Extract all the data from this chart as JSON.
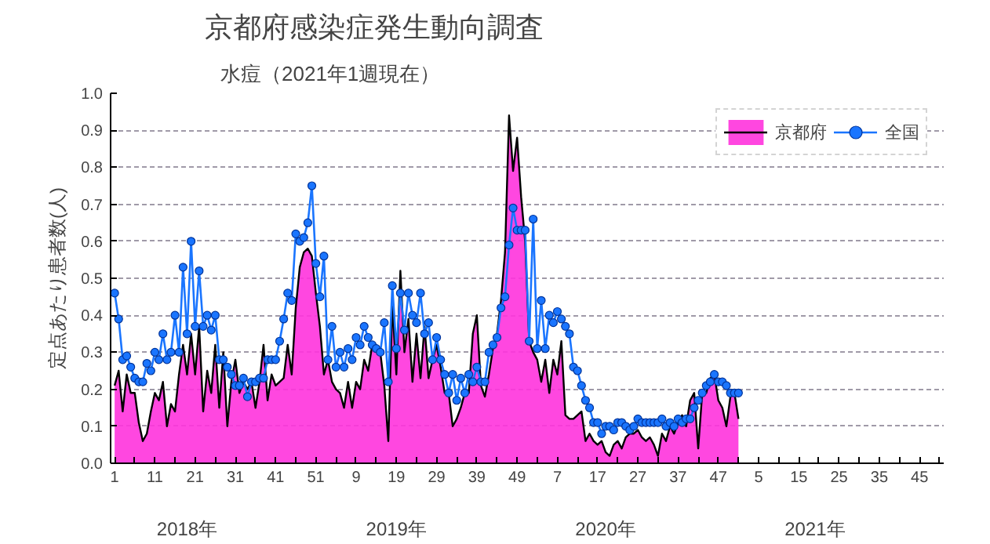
{
  "chart_data": {
    "type": "area",
    "title": "京都府感染症発生動向調査",
    "subtitle": "水痘（2021年1週現在）",
    "ylabel": "定点あたり患者数(人)",
    "annotations": [
      "2018年",
      "2019年",
      "2020年",
      "2021年"
    ],
    "categories": [
      "1",
      null,
      null,
      null,
      null,
      null,
      null,
      null,
      null,
      null,
      "11",
      null,
      null,
      null,
      null,
      null,
      null,
      null,
      null,
      null,
      "21",
      null,
      null,
      null,
      null,
      null,
      null,
      null,
      null,
      null,
      "31",
      null,
      null,
      null,
      null,
      null,
      null,
      null,
      null,
      null,
      "41",
      null,
      null,
      null,
      null,
      null,
      null,
      null,
      null,
      null,
      "51",
      null,
      null,
      null,
      null,
      null,
      null,
      null,
      null,
      null,
      "9",
      null,
      null,
      null,
      null,
      null,
      null,
      null,
      null,
      null,
      "19",
      null,
      null,
      null,
      null,
      null,
      null,
      null,
      null,
      null,
      "29",
      null,
      null,
      null,
      null,
      null,
      null,
      null,
      null,
      null,
      "39",
      null,
      null,
      null,
      null,
      null,
      null,
      null,
      null,
      null,
      "49",
      null,
      null,
      null,
      null,
      null,
      null,
      null,
      null,
      null,
      "7",
      null,
      null,
      null,
      null,
      null,
      null,
      null,
      null,
      null,
      "17",
      null,
      null,
      null,
      null,
      null,
      null,
      null,
      null,
      null,
      "27",
      null,
      null,
      null,
      null,
      null,
      null,
      null,
      null,
      null,
      "37",
      null,
      null,
      null,
      null,
      null,
      null,
      null,
      null,
      null,
      "47",
      null,
      null,
      null,
      null,
      null,
      null,
      null,
      null,
      null,
      "5",
      null,
      null,
      null,
      null,
      null,
      null,
      null,
      null,
      null,
      "15",
      null,
      null,
      null,
      null,
      null,
      null,
      null,
      null,
      null,
      "25",
      null,
      null,
      null,
      null,
      null,
      null,
      null,
      null,
      null,
      "35",
      null,
      null,
      null,
      null,
      null,
      null,
      null,
      null,
      null,
      "45",
      null,
      null,
      null,
      null,
      null
    ],
    "series": [
      {
        "name": "京都府",
        "color": "#ff33dd",
        "values": [
          0.21,
          0.25,
          0.14,
          0.24,
          0.19,
          0.19,
          0.11,
          0.06,
          0.08,
          0.14,
          0.19,
          0.17,
          0.22,
          0.1,
          0.16,
          0.14,
          0.24,
          0.32,
          0.24,
          0.35,
          0.24,
          0.37,
          0.14,
          0.25,
          0.19,
          0.32,
          0.15,
          0.3,
          0.1,
          0.22,
          0.28,
          0.19,
          0.22,
          0.2,
          0.22,
          0.15,
          0.22,
          0.32,
          0.17,
          0.24,
          0.21,
          0.22,
          0.23,
          0.32,
          0.24,
          0.42,
          0.53,
          0.57,
          0.58,
          0.56,
          0.46,
          0.37,
          0.24,
          0.28,
          0.22,
          0.2,
          0.19,
          0.15,
          0.22,
          0.15,
          0.22,
          0.2,
          0.28,
          0.25,
          0.32,
          0.32,
          0.3,
          0.21,
          0.06,
          0.43,
          0.24,
          0.52,
          0.3,
          0.39,
          0.22,
          0.35,
          0.23,
          0.37,
          0.23,
          0.28,
          0.32,
          0.26,
          0.19,
          0.19,
          0.1,
          0.12,
          0.15,
          0.19,
          0.19,
          0.35,
          0.4,
          0.21,
          0.18,
          0.24,
          0.31,
          0.35,
          0.44,
          0.57,
          0.94,
          0.79,
          0.88,
          0.72,
          0.6,
          0.33,
          0.3,
          0.28,
          0.22,
          0.28,
          0.19,
          0.28,
          0.24,
          0.33,
          0.13,
          0.12,
          0.12,
          0.13,
          0.14,
          0.06,
          0.08,
          0.06,
          0.05,
          0.06,
          0.03,
          0.02,
          0.05,
          0.06,
          0.04,
          0.07,
          0.08,
          0.08,
          0.09,
          0.07,
          0.06,
          0.07,
          0.05,
          0.02,
          0.08,
          0.06,
          0.1,
          0.08,
          0.11,
          0.13,
          0.1,
          0.17,
          0.19,
          0.04,
          0.19,
          0.19,
          0.23,
          0.24,
          0.17,
          0.15,
          0.1,
          0.18,
          0.19,
          0.12,
          null,
          null,
          null,
          null,
          null,
          null,
          null,
          null,
          null,
          null,
          null,
          null,
          null,
          null,
          null,
          null,
          null,
          null,
          null,
          null,
          null,
          null,
          null,
          null,
          null,
          null,
          null,
          null,
          null,
          null,
          null,
          null,
          null,
          null,
          null,
          null,
          null,
          null,
          null,
          null,
          null,
          null,
          null,
          null,
          null,
          null,
          null,
          null,
          null,
          null
        ]
      },
      {
        "name": "全国",
        "type": "line",
        "color": "#1a75ff",
        "marker": "circle",
        "values": [
          0.46,
          0.39,
          0.28,
          0.29,
          0.26,
          0.23,
          0.22,
          0.22,
          0.27,
          0.25,
          0.3,
          0.28,
          0.35,
          0.28,
          0.3,
          0.4,
          0.3,
          0.53,
          0.35,
          0.6,
          0.37,
          0.52,
          0.37,
          0.4,
          0.36,
          0.4,
          0.28,
          0.28,
          0.26,
          0.24,
          0.21,
          0.21,
          0.23,
          0.18,
          0.22,
          0.22,
          0.23,
          0.23,
          0.28,
          0.28,
          0.28,
          0.33,
          0.39,
          0.46,
          0.44,
          0.62,
          0.6,
          0.61,
          0.65,
          0.75,
          0.54,
          0.45,
          0.56,
          0.28,
          0.37,
          0.26,
          0.3,
          0.26,
          0.31,
          0.28,
          0.34,
          0.32,
          0.37,
          0.34,
          0.32,
          0.31,
          0.3,
          0.38,
          0.22,
          0.48,
          0.31,
          0.46,
          0.36,
          0.46,
          0.4,
          0.38,
          0.46,
          0.35,
          0.38,
          0.28,
          0.34,
          0.28,
          0.24,
          0.19,
          0.24,
          0.17,
          0.23,
          0.19,
          0.24,
          0.22,
          0.26,
          0.22,
          0.22,
          0.3,
          0.32,
          0.34,
          0.42,
          0.45,
          0.59,
          0.69,
          0.63,
          0.63,
          0.63,
          0.33,
          0.66,
          0.31,
          0.44,
          0.31,
          0.4,
          0.38,
          0.41,
          0.39,
          0.37,
          0.35,
          0.26,
          0.25,
          0.21,
          0.17,
          0.15,
          0.11,
          0.11,
          0.08,
          0.1,
          0.1,
          0.09,
          0.11,
          0.11,
          0.1,
          0.09,
          0.1,
          0.12,
          0.11,
          0.11,
          0.11,
          0.11,
          0.11,
          0.12,
          0.1,
          0.11,
          0.1,
          0.12,
          0.11,
          0.12,
          0.12,
          0.15,
          0.17,
          0.19,
          0.21,
          0.22,
          0.24,
          0.22,
          0.22,
          0.21,
          0.19,
          0.19,
          0.19,
          null,
          null,
          null,
          null,
          null,
          null,
          null,
          null,
          null,
          null,
          null,
          null,
          null,
          null,
          null,
          null,
          null,
          null,
          null,
          null,
          null,
          null,
          null,
          null,
          null,
          null,
          null,
          null,
          null,
          null,
          null,
          null,
          null,
          null,
          null,
          null,
          null,
          null,
          null,
          null,
          null,
          null,
          null,
          null,
          null,
          null,
          null,
          null,
          null,
          null
        ]
      }
    ],
    "ylim": [
      0,
      1
    ],
    "yticks": [
      {
        "value": 0,
        "label": "0.0"
      },
      {
        "value": 0.1,
        "label": "0.1"
      },
      {
        "value": 0.2,
        "label": "0.2"
      },
      {
        "value": 0.3,
        "label": "0.3"
      },
      {
        "value": 0.4,
        "label": "0.4"
      },
      {
        "value": 0.5,
        "label": "0.5"
      },
      {
        "value": 0.6,
        "label": "0.6"
      },
      {
        "value": 0.7,
        "label": "0.7"
      },
      {
        "value": 0.8,
        "label": "0.8"
      },
      {
        "value": 0.9,
        "label": "0.9"
      },
      {
        "value": 1,
        "label": "1.0"
      }
    ],
    "grid": "y",
    "legend": "top right",
    "line_style": "solid"
  }
}
